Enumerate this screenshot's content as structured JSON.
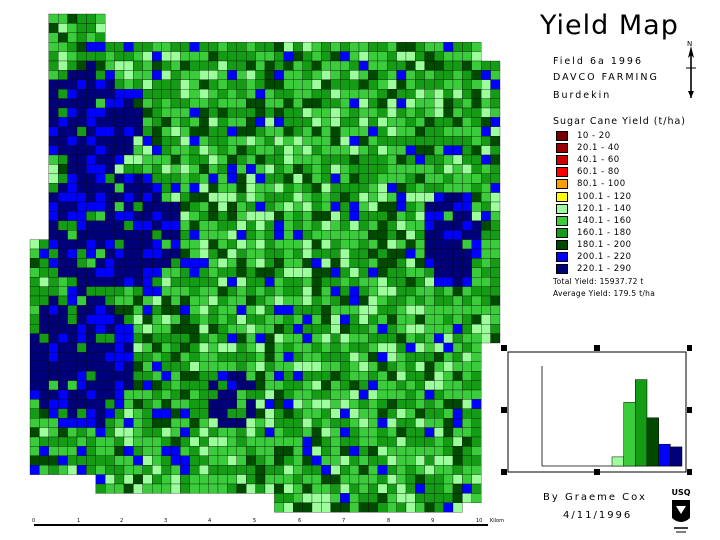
{
  "title": "Yield Map",
  "field": "Field 6a 1996",
  "farm": "DAVCO FARMING",
  "region": "Burdekin",
  "legend": {
    "title": "Sugar Cane Yield (t/ha)",
    "items": [
      {
        "label": "10 - 20",
        "color": "#7a0000"
      },
      {
        "label": "20.1 - 40",
        "color": "#9c0000"
      },
      {
        "label": "40.1 - 60",
        "color": "#cc0000"
      },
      {
        "label": "60.1 - 80",
        "color": "#ff0000"
      },
      {
        "label": "80.1 - 100",
        "color": "#ff9c00"
      },
      {
        "label": "100.1 - 120",
        "color": "#ffff00"
      },
      {
        "label": "120.1 - 140",
        "color": "#9cff9c"
      },
      {
        "label": "140.1 - 160",
        "color": "#3acc3a"
      },
      {
        "label": "160.1 - 180",
        "color": "#149c14"
      },
      {
        "label": "180.1 - 200",
        "color": "#004a00"
      },
      {
        "label": "200.1 - 220",
        "color": "#0000ff"
      },
      {
        "label": "220.1 - 290",
        "color": "#00007a"
      }
    ]
  },
  "total_yield": "Total Yield: 15937.72 t",
  "average_yield": "Average Yield: 179.5 t/ha",
  "north_label": "N",
  "author": "By Graeme Cox",
  "date": "4/11/1996",
  "logo_text": "USQ",
  "scale": {
    "ticks": [
      "0",
      "1",
      "2",
      "3",
      "4",
      "5",
      "6",
      "7",
      "8",
      "9",
      "10"
    ],
    "unit": "Kilom"
  },
  "chart_data": {
    "type": "bar",
    "categories": [
      "10 - 20",
      "20.1 - 40",
      "40.1 - 60",
      "60.1 - 80",
      "80.1 - 100",
      "100.1 - 120",
      "120.1 - 140",
      "140.1 - 160",
      "160.1 - 180",
      "180.1 - 200",
      "200.1 - 220",
      "220.1 - 290"
    ],
    "values": [
      0,
      0,
      0,
      0,
      0,
      0,
      10,
      70,
      95,
      53,
      24,
      21
    ],
    "ylim": [
      0,
      110
    ],
    "title": "",
    "xlabel": "",
    "ylabel": ""
  }
}
